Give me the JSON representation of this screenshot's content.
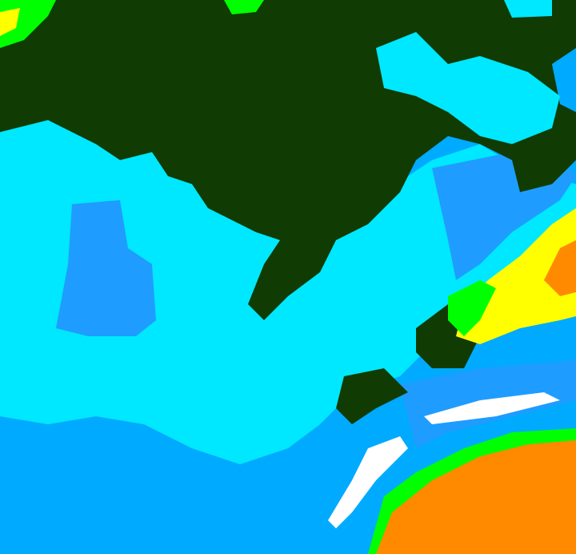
{
  "map": {
    "type": "false-color raster",
    "palette": {
      "dark_green": "#103c04",
      "cyan": "#00e8ff",
      "light_blue": "#00aaff",
      "mid_blue": "#1f9cff",
      "white": "#ffffff",
      "green": "#00ff00",
      "yellow": "#ffff00",
      "orange": "#ff8a00",
      "lime": "#c8ff00"
    }
  }
}
